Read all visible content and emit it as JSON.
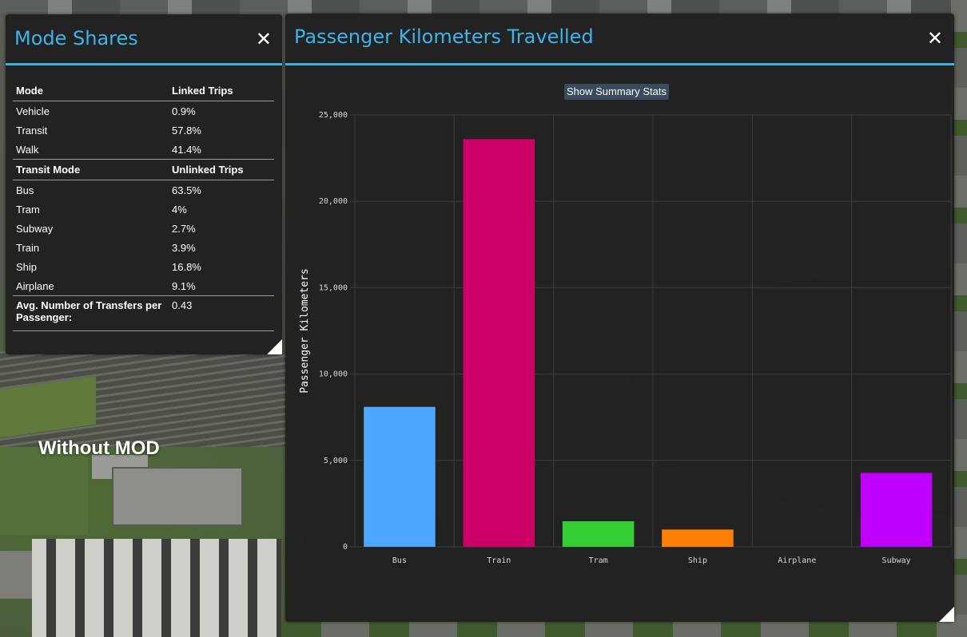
{
  "overlay_label": "Without MOD",
  "mode_shares": {
    "title": "Mode Shares",
    "close_label": "✕",
    "mode_header": {
      "label": "Mode",
      "value": "Linked Trips"
    },
    "modes": [
      {
        "label": "Vehicle",
        "value": "0.9%"
      },
      {
        "label": "Transit",
        "value": "57.8%"
      },
      {
        "label": "Walk",
        "value": "41.4%"
      }
    ],
    "transit_header": {
      "label": "Transit Mode",
      "value": "Unlinked Trips"
    },
    "transit_modes": [
      {
        "label": "Bus",
        "value": "63.5%"
      },
      {
        "label": "Tram",
        "value": "4%"
      },
      {
        "label": "Subway",
        "value": "2.7%"
      },
      {
        "label": "Train",
        "value": "3.9%"
      },
      {
        "label": "Ship",
        "value": "16.8%"
      },
      {
        "label": "Airplane",
        "value": "9.1%"
      }
    ],
    "transfers": {
      "label": "Avg. Number of Transfers per Passenger:",
      "value": "0.43"
    }
  },
  "pkt": {
    "title": "Passenger Kilometers Travelled",
    "close_label": "✕",
    "summary_button": "Show Summary Stats"
  },
  "chart_data": {
    "type": "bar",
    "categories": [
      "Bus",
      "Train",
      "Tram",
      "Ship",
      "Airplane",
      "Subway"
    ],
    "values": [
      8100,
      23600,
      1480,
      1000,
      30,
      4280
    ],
    "colors": [
      "#4da6ff",
      "#cc0066",
      "#33cc33",
      "#ff8000",
      "#3a3a3a",
      "#bf00ff"
    ],
    "title": "",
    "xlabel": "",
    "ylabel": "Passenger Kilometers",
    "ylim": [
      0,
      25000
    ],
    "yticks": [
      0,
      5000,
      10000,
      15000,
      20000,
      25000
    ],
    "ytick_labels": [
      "0",
      "5,000",
      "10,000",
      "15,000",
      "20,000",
      "25,000"
    ],
    "grid": true,
    "legend": "none"
  }
}
